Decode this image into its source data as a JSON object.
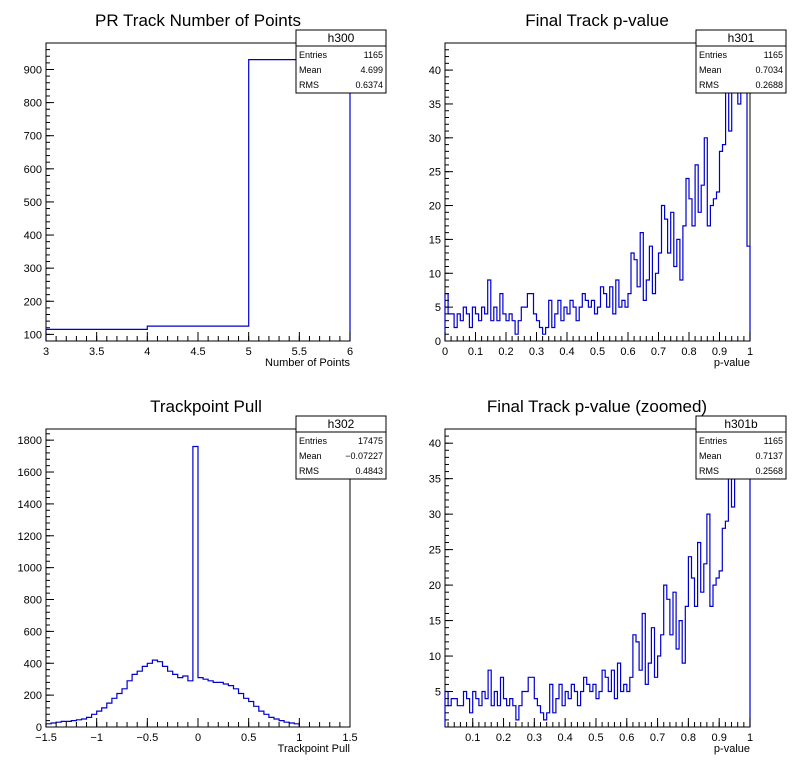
{
  "colors": {
    "histogram": "#0000cc",
    "frame": "#000000",
    "background": "#ffffff"
  },
  "chart_data": [
    {
      "type": "bar",
      "title": "PR Track Number of Points",
      "xlabel": "Number of Points",
      "ylabel": "",
      "xlim": [
        3,
        6
      ],
      "ylim": [
        80,
        980
      ],
      "xticks": [
        "3",
        "3.5",
        "4",
        "4.5",
        "5",
        "5.5",
        "6"
      ],
      "yticks": [
        "100",
        "200",
        "300",
        "400",
        "500",
        "600",
        "700",
        "800",
        "900"
      ],
      "bin_edges": [
        3,
        4,
        5,
        6
      ],
      "values": [
        115,
        125,
        930
      ],
      "stats": {
        "name": "h300",
        "rows": [
          [
            "Entries",
            "1165"
          ],
          [
            "Mean",
            "4.699"
          ],
          [
            "RMS",
            "0.6374"
          ]
        ]
      }
    },
    {
      "type": "bar",
      "title": "Final Track p-value",
      "xlabel": "p-value",
      "ylabel": "",
      "xlim": [
        0,
        1
      ],
      "ylim": [
        0,
        44
      ],
      "xticks": [
        "0",
        "0.1",
        "0.2",
        "0.3",
        "0.4",
        "0.5",
        "0.6",
        "0.7",
        "0.8",
        "0.9",
        "1"
      ],
      "yticks": [
        "0",
        "5",
        "10",
        "15",
        "20",
        "25",
        "30",
        "35",
        "40"
      ],
      "bin_width": 0.01,
      "values": [
        7,
        4,
        4,
        2,
        4,
        3,
        5,
        4,
        2,
        5,
        4,
        3,
        5,
        4,
        9,
        3,
        5,
        3,
        7,
        4,
        3,
        4,
        3,
        1,
        3,
        5,
        5,
        7,
        7,
        4,
        3,
        2,
        1,
        2,
        6,
        2,
        4,
        6,
        3,
        5,
        4,
        6,
        5,
        3,
        5,
        7,
        6,
        5,
        6,
        4,
        5,
        8,
        7,
        5,
        8,
        4,
        9,
        5,
        6,
        5,
        7,
        13,
        12,
        8,
        16,
        6,
        9,
        14,
        7,
        10,
        13,
        20,
        18,
        13,
        19,
        11,
        15,
        9,
        17,
        24,
        21,
        17,
        26,
        19,
        23,
        30,
        17,
        20,
        21,
        22,
        28,
        29,
        37,
        31,
        37,
        37,
        35,
        37,
        43,
        14
      ],
      "stats": {
        "name": "h301",
        "rows": [
          [
            "Entries",
            "1165"
          ],
          [
            "Mean",
            "0.7034"
          ],
          [
            "RMS",
            "0.2688"
          ]
        ]
      }
    },
    {
      "type": "bar",
      "title": "Trackpoint Pull",
      "xlabel": "Trackpoint Pull",
      "ylabel": "",
      "xlim": [
        -1.5,
        1.5
      ],
      "ylim": [
        0,
        1870
      ],
      "xticks": [
        "−1.5",
        "−1",
        "−0.5",
        "0",
        "0.5",
        "1",
        "1.5"
      ],
      "yticks": [
        "0",
        "200",
        "400",
        "600",
        "800",
        "1000",
        "1200",
        "1400",
        "1600",
        "1800"
      ],
      "bin_width": 0.05,
      "values": [
        20,
        25,
        30,
        35,
        35,
        40,
        45,
        50,
        60,
        80,
        100,
        120,
        150,
        180,
        210,
        240,
        290,
        330,
        350,
        380,
        400,
        420,
        410,
        380,
        350,
        330,
        310,
        320,
        290,
        1760,
        310,
        300,
        290,
        280,
        280,
        270,
        260,
        240,
        210,
        180,
        160,
        130,
        100,
        80,
        60,
        50,
        40,
        30,
        25,
        20
      ],
      "stats": {
        "name": "h302",
        "rows": [
          [
            "Entries",
            "17475"
          ],
          [
            "Mean",
            "−0.07227"
          ],
          [
            "RMS",
            "0.4843"
          ]
        ]
      }
    },
    {
      "type": "bar",
      "title": "Final Track p-value (zoomed)",
      "xlabel": "p-value",
      "ylabel": "",
      "xlim": [
        0.01,
        1
      ],
      "ylim": [
        0,
        42
      ],
      "xticks": [
        "0.1",
        "0.2",
        "0.3",
        "0.4",
        "0.5",
        "0.6",
        "0.7",
        "0.8",
        "0.9",
        "1"
      ],
      "xtick_values": [
        0.1,
        0.2,
        0.3,
        0.4,
        0.5,
        0.6,
        0.7,
        0.8,
        0.9,
        1.0
      ],
      "yticks": [
        "5",
        "10",
        "15",
        "20",
        "25",
        "30",
        "35",
        "40"
      ],
      "bin_width": 0.01,
      "values": [
        5,
        3,
        4,
        4,
        3,
        3,
        5,
        4,
        2,
        5,
        4,
        3,
        5,
        4,
        8,
        3,
        5,
        3,
        7,
        4,
        3,
        4,
        3,
        1,
        3,
        5,
        5,
        7,
        7,
        4,
        3,
        2,
        1,
        2,
        6,
        2,
        4,
        6,
        3,
        5,
        4,
        6,
        5,
        3,
        5,
        7,
        6,
        5,
        6,
        4,
        5,
        8,
        7,
        5,
        8,
        4,
        9,
        5,
        6,
        5,
        7,
        13,
        12,
        8,
        16,
        6,
        9,
        14,
        7,
        10,
        13,
        20,
        18,
        13,
        19,
        11,
        15,
        9,
        17,
        24,
        21,
        17,
        26,
        19,
        23,
        30,
        17,
        20,
        21,
        22,
        28,
        29,
        37,
        31,
        37,
        37,
        35,
        37,
        40
      ],
      "stats": {
        "name": "h301b",
        "rows": [
          [
            "Entries",
            "1165"
          ],
          [
            "Mean",
            "0.7137"
          ],
          [
            "RMS",
            "0.2568"
          ]
        ]
      }
    }
  ]
}
